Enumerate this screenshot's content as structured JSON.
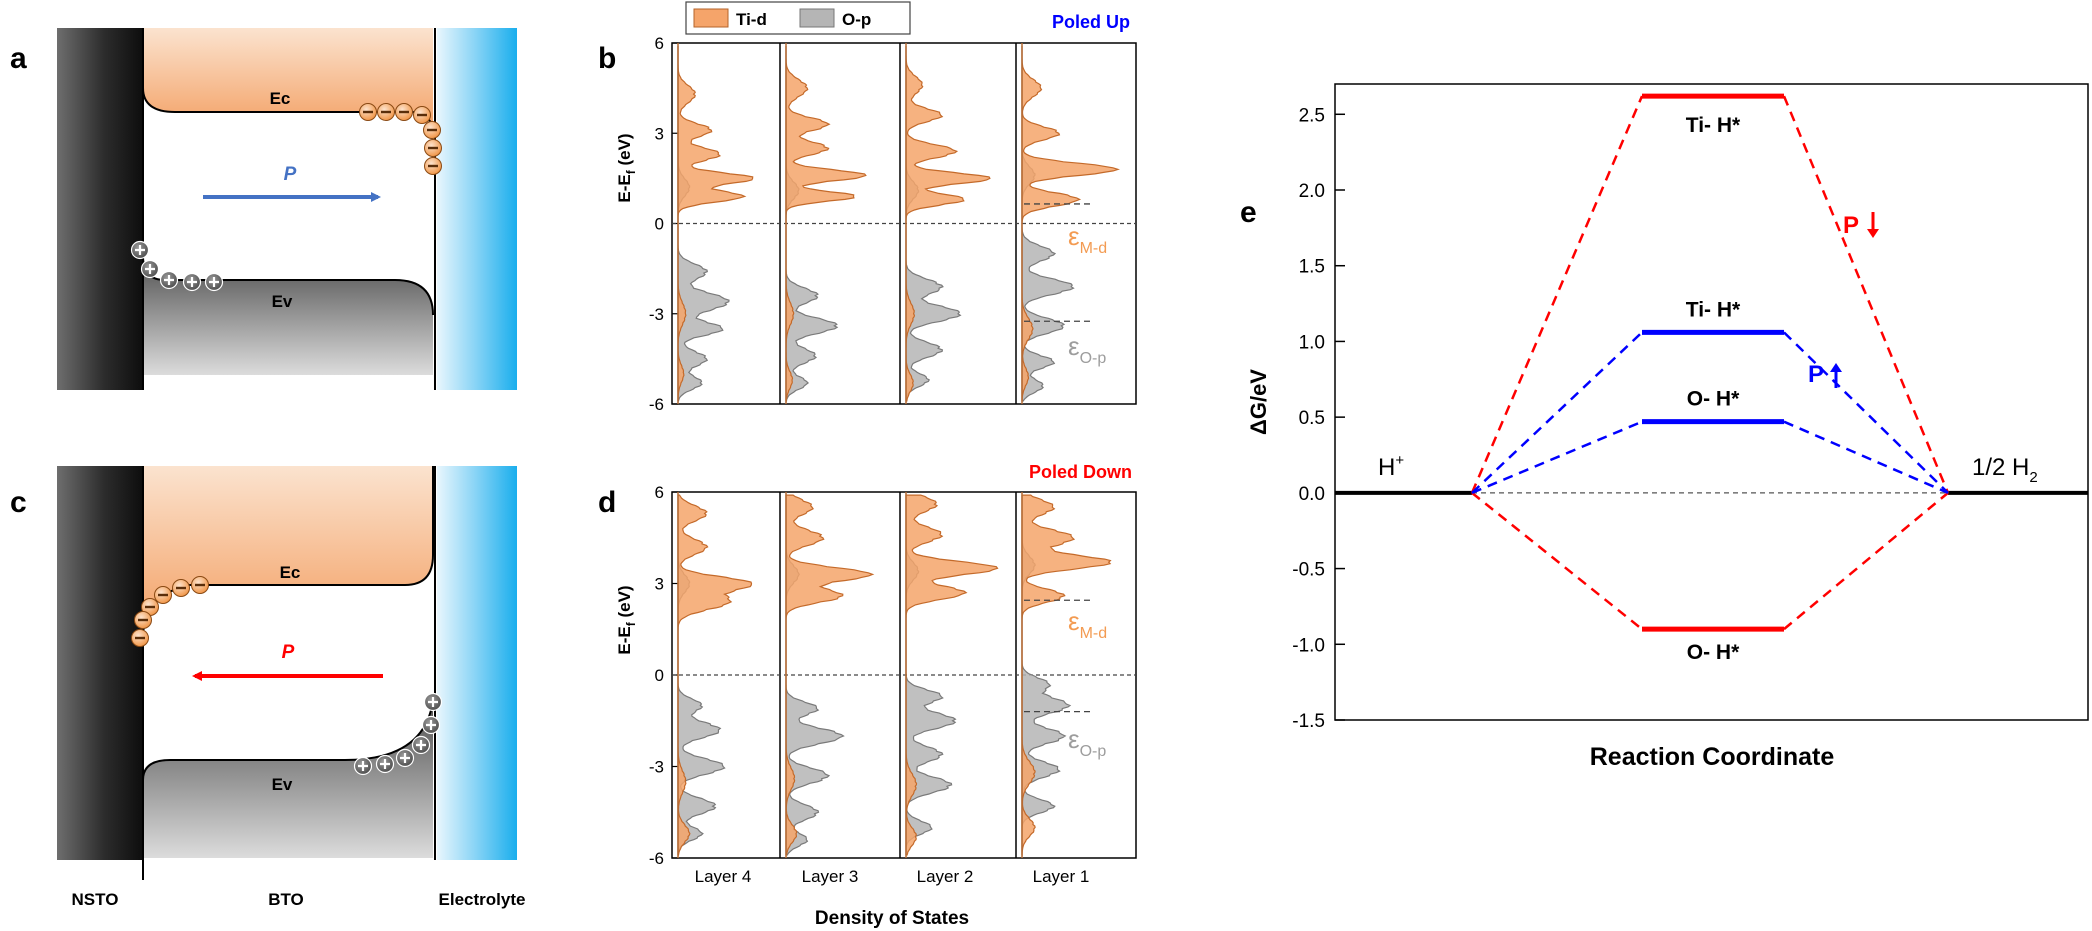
{
  "panel_labels": {
    "a": "a",
    "b": "b",
    "c": "c",
    "d": "d",
    "e": "e"
  },
  "band_diagram": {
    "ec": "Ec",
    "ev": "Ev",
    "p": "P",
    "nsto": "NSTO",
    "bto": "BTO",
    "electrolyte": "Electrolyte",
    "minus": "−",
    "plus": "+",
    "colors": {
      "conduction": "#f5a46a",
      "valence": "#707070",
      "arrow_up": "#4472c4",
      "arrow_down": "#ff0000",
      "electrolyte": "#1ab2ee"
    }
  },
  "dos": {
    "legend": [
      "Ti-d",
      "O-p"
    ],
    "poled_up": "Poled Up",
    "poled_down": "Poled Down",
    "ylabel_main": "E-E",
    "ylabel_sub": "f",
    "ylabel_unit": " (eV)",
    "yticks": [
      "6",
      "3",
      "0",
      "-3",
      "-6"
    ],
    "layers": [
      "Layer 4",
      "Layer 3",
      "Layer 2",
      "Layer 1"
    ],
    "xlabel": "Density of States",
    "eps_md": "ε",
    "eps_md_sub": "M-d",
    "eps_op": "ε",
    "eps_op_sub": "O-p",
    "colors": {
      "ti_d": "#f5a46a",
      "o_p": "#b5b5b5",
      "up_title": "#0000ff",
      "down_title": "#ff0000"
    }
  },
  "chart_data": {
    "type": "line",
    "title": "",
    "xlabel": "Reaction Coordinate",
    "ylabel": "ΔG/eV",
    "ylim": [
      -1.5,
      2.7
    ],
    "yticks": [
      "2.5",
      "2.0",
      "1.5",
      "1.0",
      "0.5",
      "0.0",
      "-0.5",
      "-1.0",
      "-1.5"
    ],
    "grid": false,
    "reference": {
      "left_label": "H",
      "left_sup": "+",
      "right_label": "1/2 H",
      "right_sub": "2",
      "value": 0.0
    },
    "series": [
      {
        "name": "P↓",
        "color": "#ff0000",
        "levels": [
          {
            "label": "Ti- H*",
            "value": 2.62
          },
          {
            "label": "O- H*",
            "value": -0.9
          }
        ]
      },
      {
        "name": "P↑",
        "color": "#0000ff",
        "levels": [
          {
            "label": "Ti- H*",
            "value": 1.06
          },
          {
            "label": "O- H*",
            "value": 0.47
          }
        ]
      }
    ],
    "annotations": {
      "p_down_letter": "P",
      "p_up_letter": "P"
    }
  }
}
